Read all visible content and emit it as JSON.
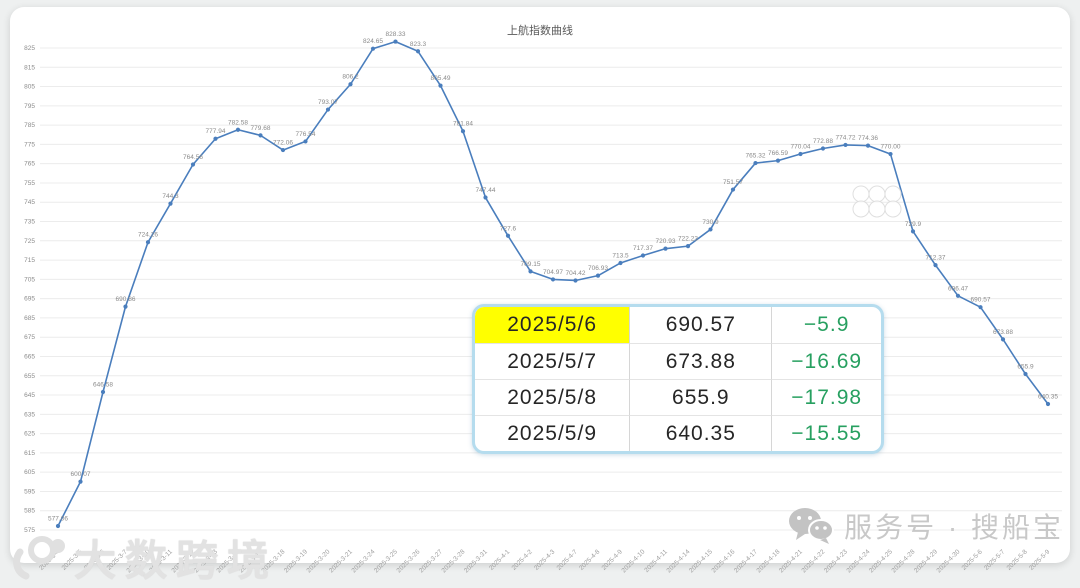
{
  "chart_data": {
    "type": "line",
    "title": "上航指数曲线",
    "series_color": "#4a7ebd",
    "ylim": [
      575,
      825
    ],
    "ytick_step": 10,
    "grid": true,
    "legend_position": "none",
    "x": [
      "2025-3-4",
      "2025-3-5",
      "2025-3-6",
      "2025-3-7",
      "2025-3-10",
      "2025-3-11",
      "2025-3-12",
      "2025-3-13",
      "2025-3-14",
      "2025-3-17",
      "2025-3-18",
      "2025-3-19",
      "2025-3-20",
      "2025-3-21",
      "2025-3-24",
      "2025-3-25",
      "2025-3-26",
      "2025-3-27",
      "2025-3-28",
      "2025-3-31",
      "2025-4-1",
      "2025-4-2",
      "2025-4-3",
      "2025-4-7",
      "2025-4-8",
      "2025-4-9",
      "2025-4-10",
      "2025-4-11",
      "2025-4-14",
      "2025-4-15",
      "2025-4-16",
      "2025-4-17",
      "2025-4-18",
      "2025-4-21",
      "2025-4-22",
      "2025-4-23",
      "2025-4-24",
      "2025-4-25",
      "2025-4-28",
      "2025-4-29",
      "2025-4-30",
      "2025-5-6",
      "2025-5-7",
      "2025-5-8",
      "2025-5-9"
    ],
    "values": [
      577.06,
      600.07,
      646.58,
      690.86,
      724.26,
      744.3,
      764.56,
      777.94,
      782.58,
      779.68,
      772.06,
      776.54,
      793.07,
      806.2,
      824.65,
      828.33,
      823.3,
      805.49,
      781.84,
      747.44,
      727.6,
      709.15,
      704.97,
      704.42,
      706.93,
      713.5,
      717.37,
      720.93,
      722.23,
      730.9,
      751.57,
      765.32,
      766.59,
      770.04,
      772.88,
      774.72,
      774.36,
      770.0,
      729.9,
      712.37,
      696.47,
      690.57,
      673.88,
      655.9,
      640.35
    ],
    "point_labels": [
      "577.06",
      "600.07",
      "646.58",
      "690.86",
      "724.26",
      "744.3",
      "764.56",
      "777.94",
      "782.58",
      "779.68",
      "772.06",
      "776.54",
      "793.07",
      "806.2",
      "824.65",
      "828.33",
      "823.3",
      "805.49",
      "781.84",
      "747.44",
      "727.6",
      "709.15",
      "704.97",
      "704.42",
      "706.93",
      "713.5",
      "717.37",
      "720.93",
      "722.23",
      "730.9",
      "751.57",
      "765.32",
      "766.59",
      "770.04",
      "772.88",
      "774.72",
      "774.36",
      "770.00",
      "729.9",
      "712.37",
      "696.47",
      "690.57",
      "673.88",
      "655.9",
      "640.35"
    ]
  },
  "table": {
    "border_color": "#b5dcee",
    "highlight_color": "#ffff00",
    "change_color": "#27a060",
    "rows": [
      {
        "date": "2025/5/6",
        "value": "690.57",
        "change": "−5.9"
      },
      {
        "date": "2025/5/7",
        "value": "673.88",
        "change": "−16.69"
      },
      {
        "date": "2025/5/8",
        "value": "655.9",
        "change": "−17.98"
      },
      {
        "date": "2025/5/9",
        "value": "640.35",
        "change": "−15.55"
      }
    ]
  },
  "watermarks": {
    "bottom_left_text": "大数跨境",
    "bottom_right_text": "服务号 · 搜船宝"
  }
}
